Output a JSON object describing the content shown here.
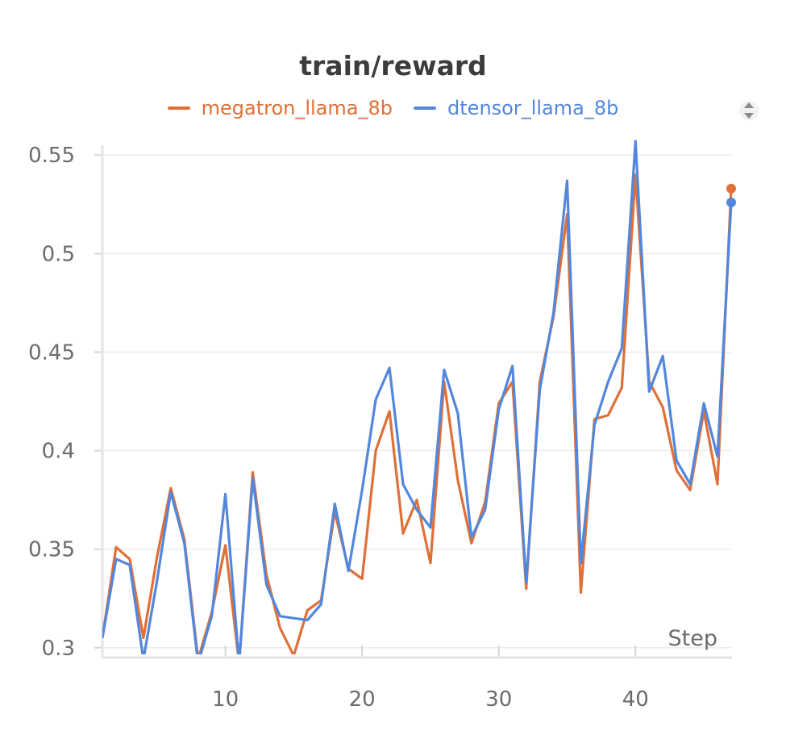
{
  "chart_data": {
    "type": "line",
    "title": "train/reward",
    "xlabel": "Step",
    "ylabel": "",
    "xlim": [
      1,
      47
    ],
    "ylim": [
      0.295,
      0.555
    ],
    "xticks": [
      10,
      20,
      30,
      40
    ],
    "yticks": [
      0.3,
      0.35,
      0.4,
      0.45,
      0.5,
      0.55
    ],
    "ytick_labels": [
      "0.3",
      "0.35",
      "0.4",
      "0.45",
      "0.5",
      "0.55"
    ],
    "grid": true,
    "legend": "top",
    "x": [
      1,
      2,
      3,
      4,
      5,
      6,
      7,
      8,
      9,
      10,
      11,
      12,
      13,
      14,
      15,
      16,
      17,
      18,
      19,
      20,
      21,
      22,
      23,
      24,
      25,
      26,
      27,
      28,
      29,
      30,
      31,
      32,
      33,
      34,
      35,
      36,
      37,
      38,
      39,
      40,
      41,
      42,
      43,
      44,
      45,
      46,
      47
    ],
    "series": [
      {
        "name": "megatron_llama_8b",
        "color": "#DE7038",
        "values": [
          0.305,
          0.351,
          0.345,
          0.305,
          0.346,
          0.381,
          0.355,
          0.294,
          0.318,
          0.352,
          0.292,
          0.389,
          0.337,
          0.31,
          0.296,
          0.319,
          0.324,
          0.369,
          0.34,
          0.335,
          0.4,
          0.42,
          0.358,
          0.375,
          0.343,
          0.435,
          0.385,
          0.353,
          0.374,
          0.424,
          0.435,
          0.33,
          0.435,
          0.468,
          0.52,
          0.328,
          0.416,
          0.418,
          0.432,
          0.54,
          0.435,
          0.422,
          0.39,
          0.38,
          0.42,
          0.383,
          0.533
        ]
      },
      {
        "name": "dtensor_llama_8b",
        "color": "#5387DD",
        "values": [
          0.305,
          0.345,
          0.342,
          0.294,
          0.334,
          0.379,
          0.353,
          0.292,
          0.316,
          0.378,
          0.292,
          0.386,
          0.332,
          0.316,
          0.315,
          0.314,
          0.322,
          0.373,
          0.339,
          0.38,
          0.426,
          0.442,
          0.383,
          0.37,
          0.361,
          0.441,
          0.419,
          0.356,
          0.37,
          0.421,
          0.443,
          0.333,
          0.431,
          0.47,
          0.537,
          0.343,
          0.413,
          0.435,
          0.452,
          0.557,
          0.43,
          0.448,
          0.395,
          0.383,
          0.424,
          0.397,
          0.526
        ]
      }
    ]
  },
  "icons": {
    "legend_scroll": "up-down-arrows-icon"
  }
}
